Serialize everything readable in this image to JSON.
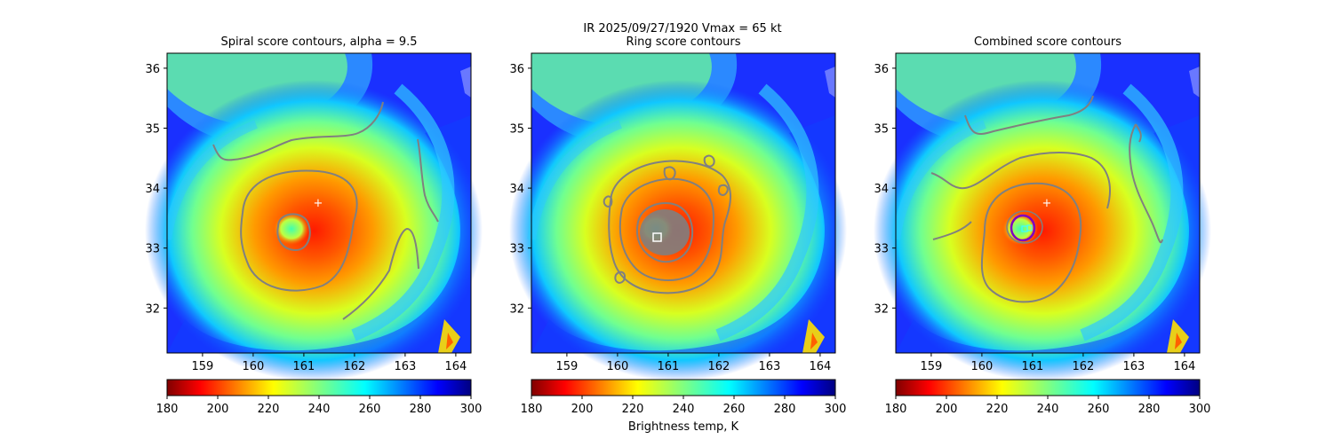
{
  "figure": {
    "title_line1": "IR  2025/09/27/1920    Vmax = 65 kt",
    "colorbar_label": "Brightness temp, K"
  },
  "colormap": {
    "name": "jet_r",
    "stops": [
      "#800000",
      "#ff0000",
      "#ff8000",
      "#ffff00",
      "#80ff80",
      "#00ffff",
      "#0080ff",
      "#0000ff",
      "#000080"
    ],
    "range": [
      180,
      300
    ],
    "ticks": [
      180,
      200,
      220,
      240,
      260,
      280,
      300
    ]
  },
  "chart_data": [
    {
      "type": "heatmap",
      "title": "Spiral score contours, alpha =  9.5",
      "xlim": [
        158.3,
        164.3
      ],
      "ylim": [
        31.25,
        36.25
      ],
      "xticks": [
        159,
        160,
        161,
        162,
        163,
        164
      ],
      "yticks": [
        32,
        33,
        34,
        35,
        36
      ],
      "colorbar": {
        "ticks": [
          180,
          200,
          220,
          240,
          260,
          280,
          300
        ],
        "label": ""
      },
      "center_marker": {
        "symbol": "+",
        "lon": 161.25,
        "lat": 33.75,
        "color": "#ffffff"
      },
      "contour_color": "#808080"
    },
    {
      "type": "heatmap",
      "title": "Ring score contours",
      "xlim": [
        158.3,
        164.3
      ],
      "ylim": [
        31.25,
        36.25
      ],
      "xticks": [
        159,
        160,
        161,
        162,
        163,
        164
      ],
      "yticks": [
        32,
        33,
        34,
        35,
        36
      ],
      "colorbar": {
        "ticks": [
          180,
          200,
          220,
          240,
          260,
          280,
          300
        ],
        "label": "Brightness temp, K"
      },
      "center_marker": {
        "symbol": "square",
        "lon": 160.75,
        "lat": 33.17,
        "color": "#ffffff"
      },
      "contour_color": "#808080"
    },
    {
      "type": "heatmap",
      "title": "Combined score contours",
      "xlim": [
        158.3,
        164.3
      ],
      "ylim": [
        31.25,
        36.25
      ],
      "xticks": [
        159,
        160,
        161,
        162,
        163,
        164
      ],
      "yticks": [
        32,
        33,
        34,
        35,
        36
      ],
      "colorbar": {
        "ticks": [
          180,
          200,
          220,
          240,
          260,
          280,
          300
        ],
        "label": ""
      },
      "center_marker": {
        "symbol": "+",
        "lon": 161.25,
        "lat": 33.75,
        "color": "#ffffff"
      },
      "ring_marker": {
        "lon": 160.8,
        "lat": 33.35,
        "color": "#8000c0"
      },
      "contour_color": "#808080"
    }
  ]
}
